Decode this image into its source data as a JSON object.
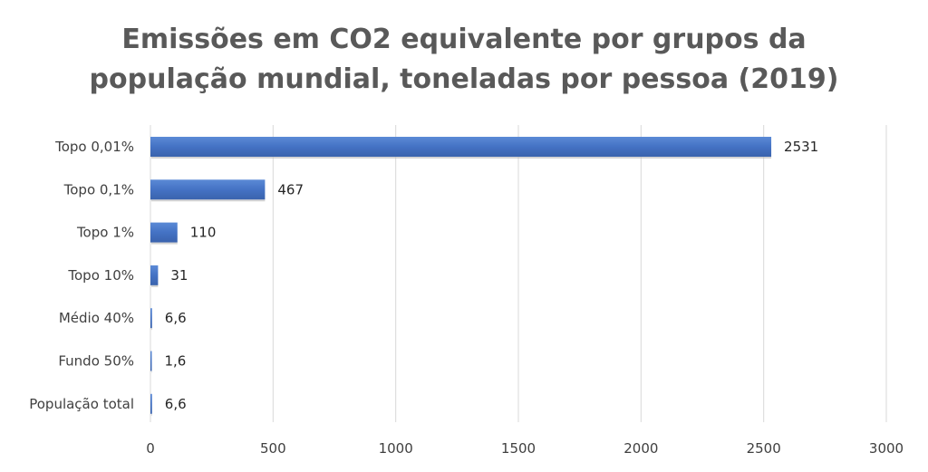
{
  "chart_data": {
    "type": "bar",
    "orientation": "horizontal",
    "title_lines": [
      "Emissões em CO2 equivalente por grupos da",
      "população mundial, toneladas por pessoa (2019)"
    ],
    "categories": [
      "Topo 0,01%",
      "Topo 0,1%",
      "Topo 1%",
      "Topo 10%",
      "Médio 40%",
      "Fundo 50%",
      "População total"
    ],
    "values": [
      2531,
      467,
      110,
      31,
      6.6,
      1.6,
      6.6
    ],
    "data_labels": [
      "2531",
      "467",
      "110",
      "31",
      "6,6",
      "1,6",
      "6,6"
    ],
    "xlim": [
      0,
      3000
    ],
    "x_ticks": [
      0,
      500,
      1000,
      1500,
      2000,
      2500,
      3000
    ],
    "x_tick_labels": [
      "0",
      "500",
      "1000",
      "1500",
      "2000",
      "2500",
      "3000"
    ],
    "grid": true,
    "legend": "none",
    "colors": {
      "bar": "#4472c4",
      "grid": "#d9d9d9",
      "title": "#595959",
      "text": "#404040"
    }
  }
}
